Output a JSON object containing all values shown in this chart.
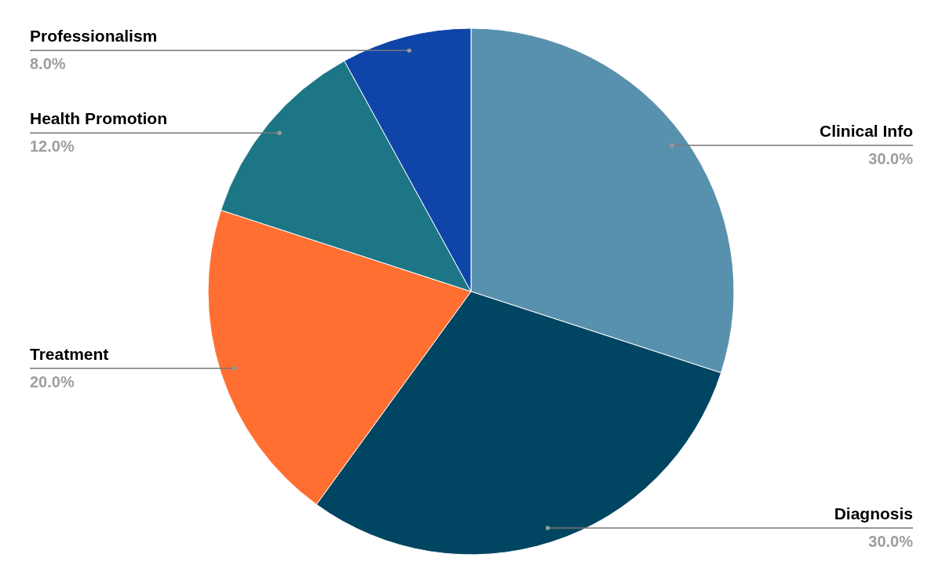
{
  "chart_data": {
    "type": "pie",
    "categories": [
      "Clinical Info",
      "Diagnosis",
      "Treatment",
      "Health Promotion",
      "Professionalism"
    ],
    "values": [
      30,
      30,
      20,
      12,
      8
    ],
    "colors": [
      "#5891ad",
      "#004561",
      "#ff6f31",
      "#1c7685",
      "#0f45a8"
    ],
    "value_labels": [
      "30.0%",
      "30.0%",
      "20.0%",
      "12.0%",
      "8.0%"
    ]
  }
}
